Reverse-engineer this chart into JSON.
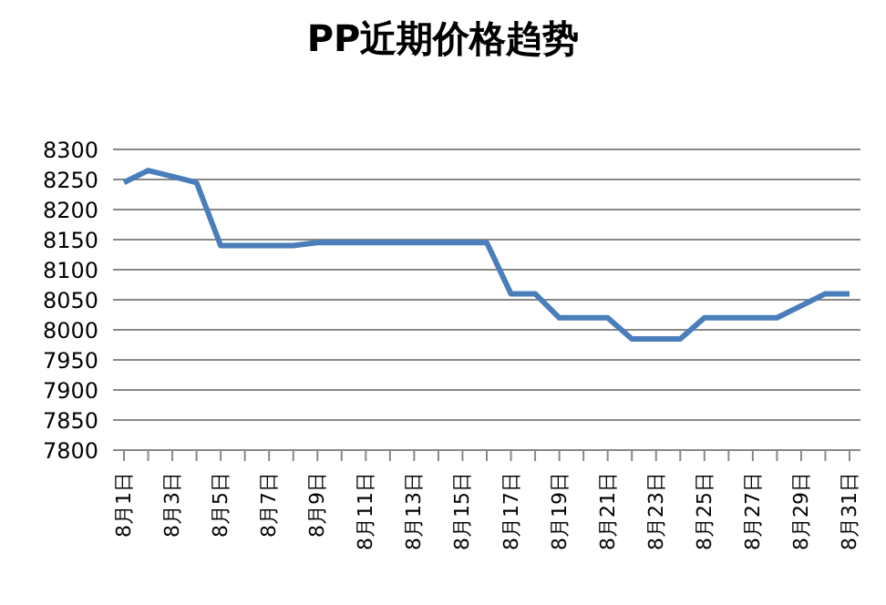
{
  "chart_data": {
    "type": "line",
    "title": "PP近期价格趋势",
    "categories": [
      "8月1日",
      null,
      "8月3日",
      null,
      "8月5日",
      null,
      "8月7日",
      null,
      "8月9日",
      null,
      "8月11日",
      null,
      "8月13日",
      null,
      "8月15日",
      null,
      "8月17日",
      null,
      "8月19日",
      null,
      "8月21日",
      null,
      "8月23日",
      null,
      "8月25日",
      null,
      "8月27日",
      null,
      "8月29日",
      null,
      "8月31日"
    ],
    "series": [
      {
        "color": "#4a7ebb",
        "values": [
          8245,
          8265,
          8255,
          8245,
          8140,
          8140,
          8140,
          8140,
          8145,
          8145,
          8145,
          8145,
          8145,
          8145,
          8145,
          8145,
          8060,
          8060,
          8020,
          8020,
          8020,
          7985,
          7985,
          7985,
          8020,
          8020,
          8020,
          8020,
          8040,
          8060,
          8060
        ]
      }
    ],
    "ylim": [
      7800,
      8300
    ],
    "yticks": [
      7800,
      7850,
      7900,
      7950,
      8000,
      8050,
      8100,
      8150,
      8200,
      8250,
      8300
    ],
    "grid": "y",
    "legend": false,
    "marker": "none",
    "line_style": "solid"
  }
}
